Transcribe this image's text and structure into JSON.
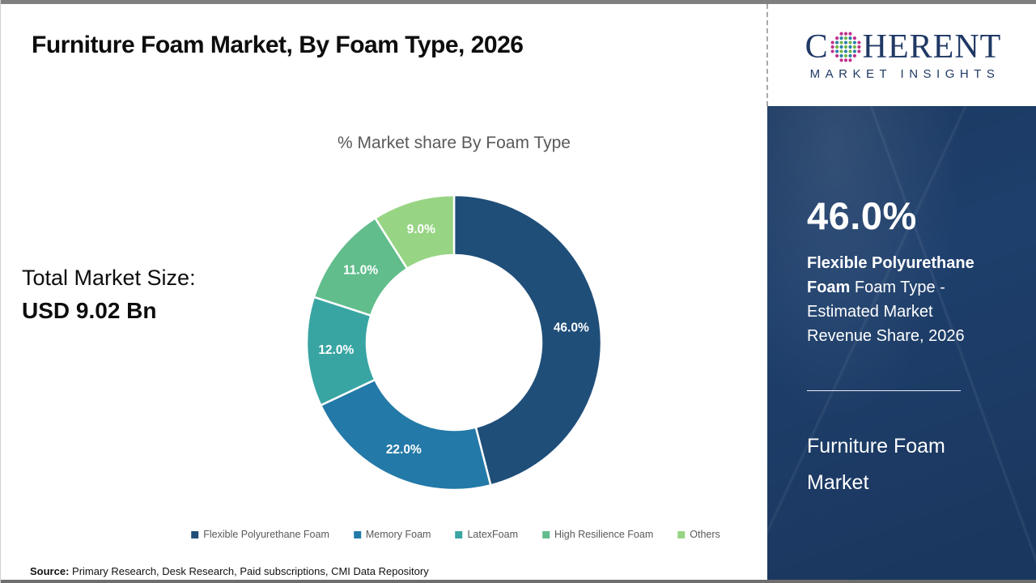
{
  "slide": {
    "title": "Furniture Foam Market, By Foam Type, 2026",
    "source_label": "Source:",
    "source_text": " Primary Research, Desk Research, Paid subscriptions, CMI Data Repository"
  },
  "total_market": {
    "label": "Total Market Size:",
    "value": "USD 9.02 Bn"
  },
  "logo": {
    "line1_prefix": "C",
    "line1_suffix": "HERENT",
    "line2": "MARKET INSIGHTS",
    "text_color": "#1f3864",
    "globe_dot_colors": {
      "teal": "#2b7fa5",
      "green": "#72b648",
      "magenta": "#c0318e"
    }
  },
  "sidebar": {
    "highlight_value": "46.0%",
    "highlight_bold": "Flexible Polyurethane Foam",
    "highlight_rest": " Foam Type - Estimated Market Revenue Share, 2026",
    "panel_title": "Furniture Foam Market",
    "background_color": "#1e3f6c"
  },
  "chart_data": {
    "type": "pie",
    "donut": true,
    "title": "% Market share By Foam Type",
    "start_angle_deg": 0,
    "direction": "clockwise",
    "legend_position": "bottom",
    "label_color": "#ffffff",
    "series": [
      {
        "name": "Flexible Polyurethane Foam",
        "value": 46.0,
        "label": "46.0%",
        "color": "#1f4e79"
      },
      {
        "name": "Memory Foam",
        "value": 22.0,
        "label": "22.0%",
        "color": "#2379a8"
      },
      {
        "name": "LatexFoam",
        "value": 12.0,
        "label": "12.0%",
        "color": "#38a5a3"
      },
      {
        "name": "High Resilience Foam",
        "value": 11.0,
        "label": "11.0%",
        "color": "#62bd8d"
      },
      {
        "name": "Others",
        "value": 9.0,
        "label": "9.0%",
        "color": "#97d584"
      }
    ]
  }
}
